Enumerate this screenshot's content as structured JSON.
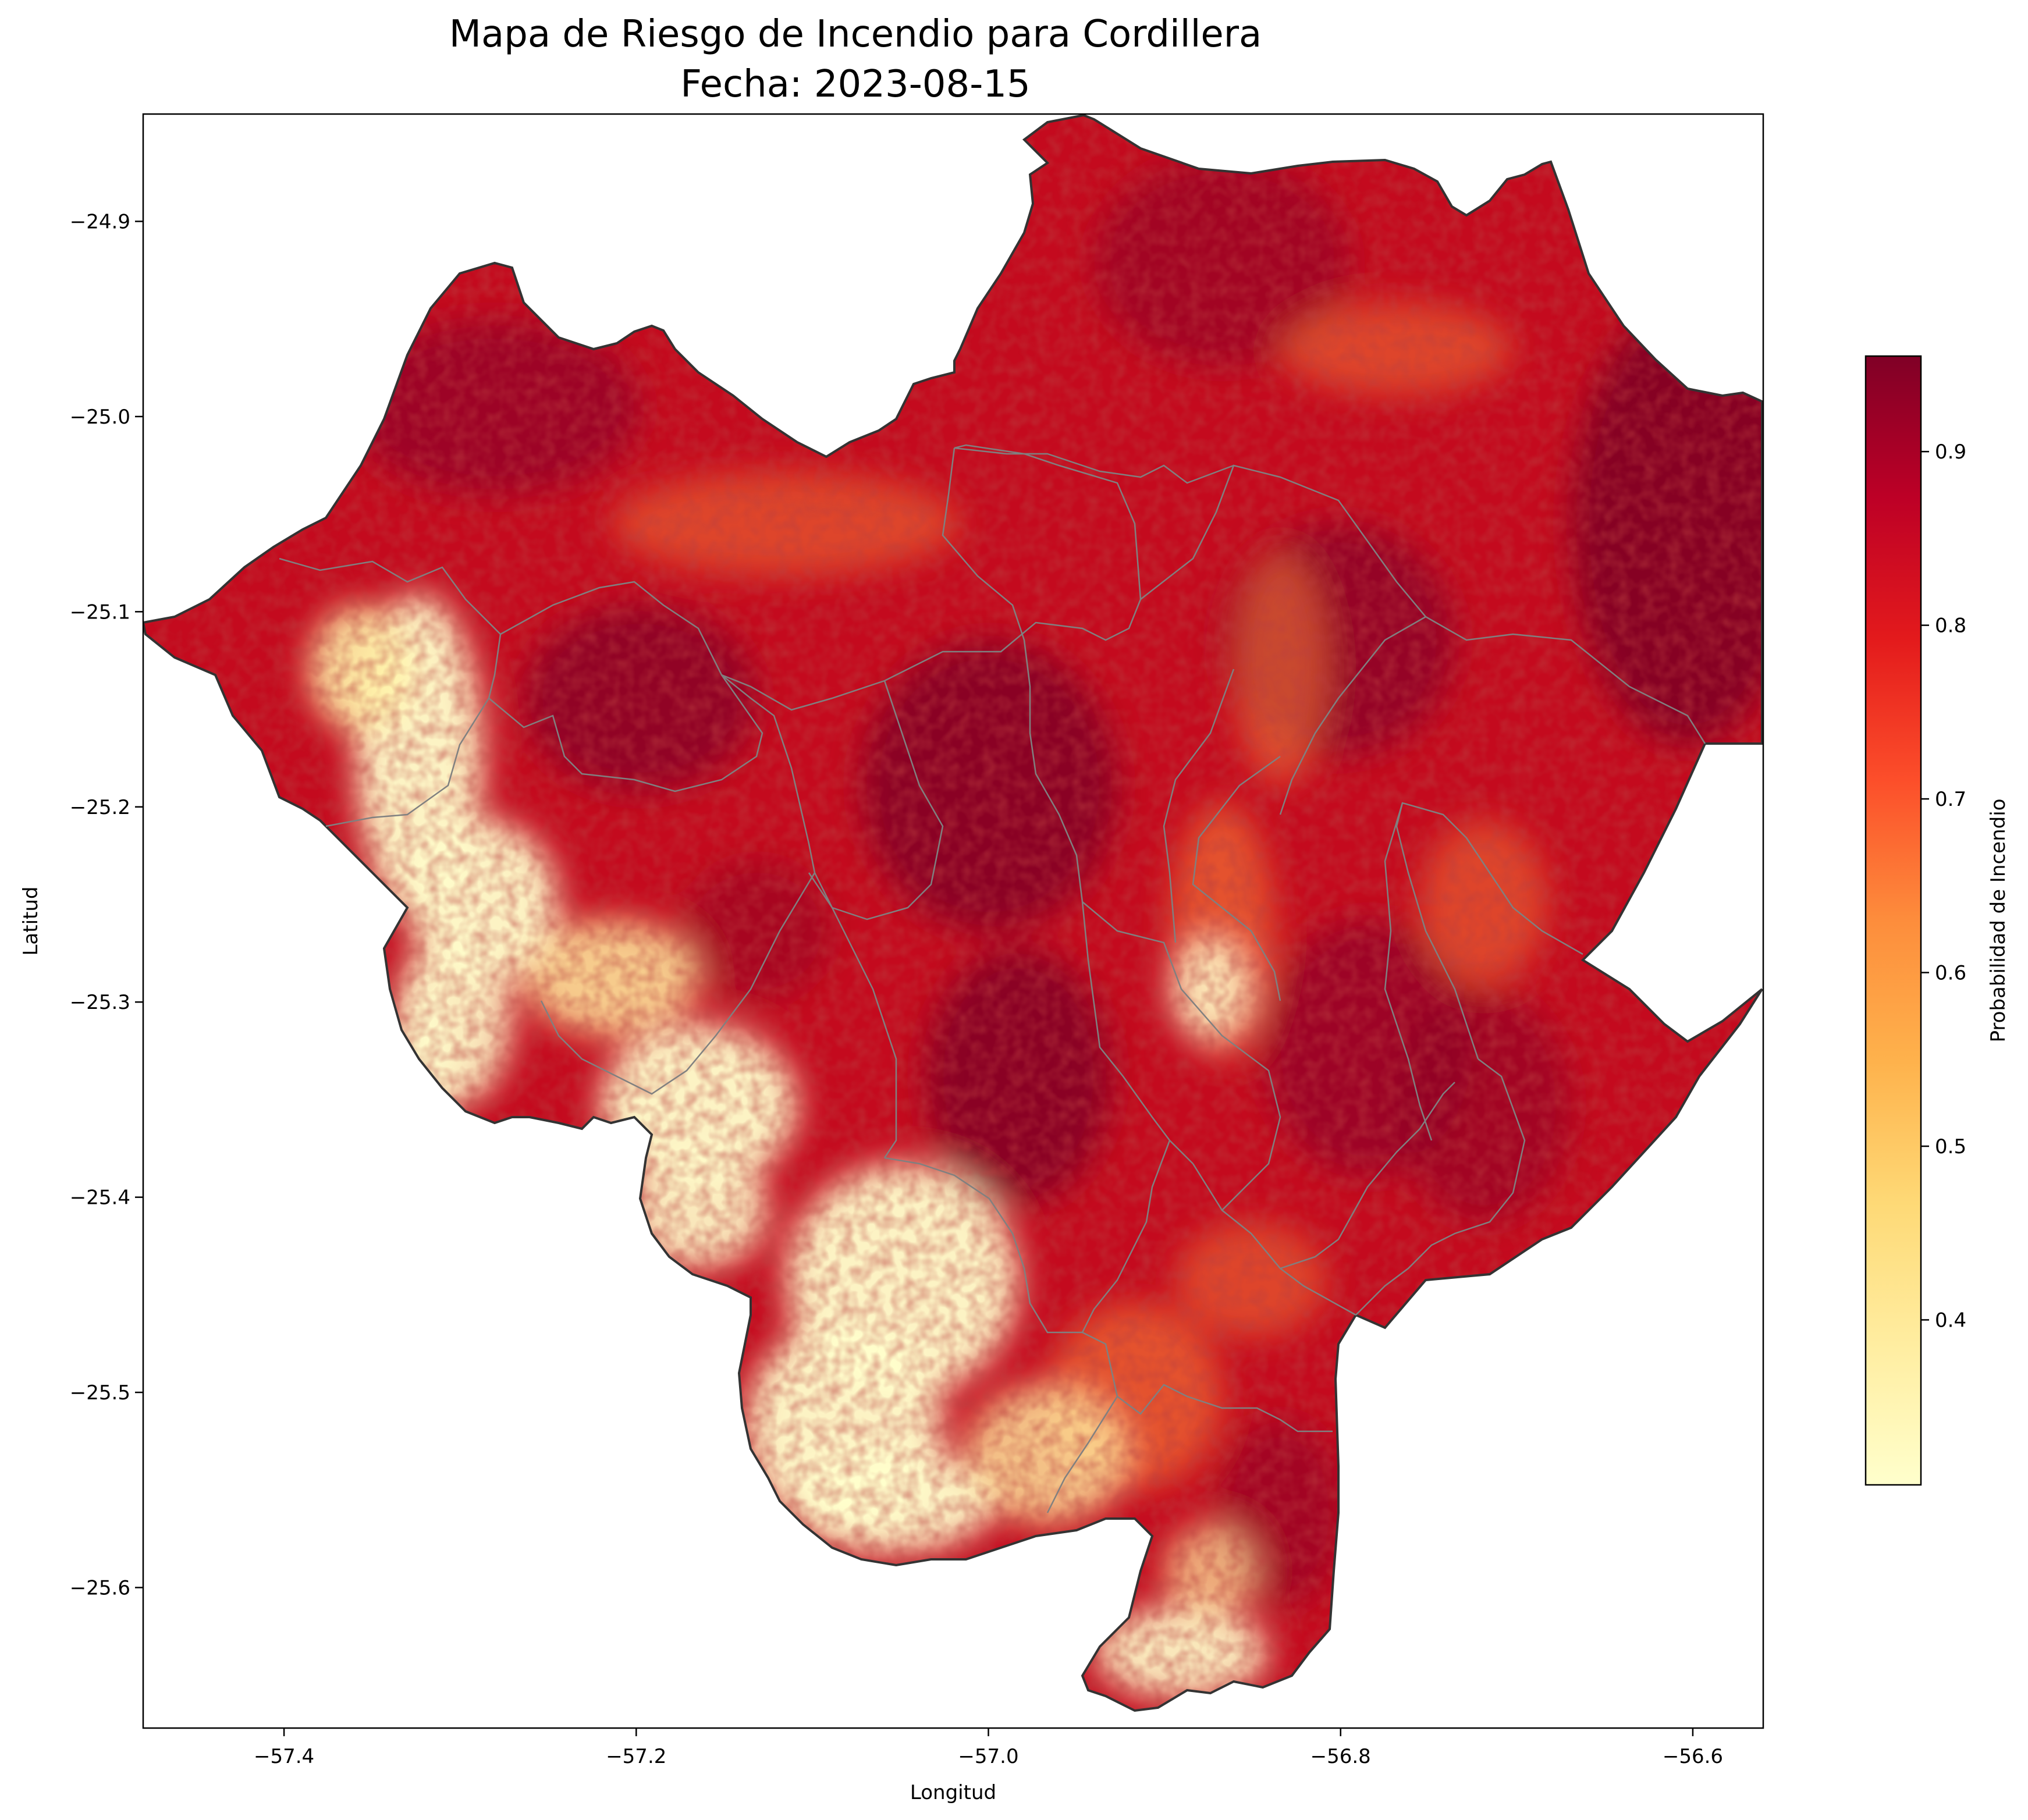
{
  "title_line1": "Mapa de Riesgo de Incendio para Cordillera",
  "title_line2": "Fecha: 2023-08-15",
  "colors": {
    "low": "#ffffcc",
    "mid_low": "#fed976",
    "mid": "#fd8d3c",
    "mid_high": "#e31a1c",
    "high": "#800026",
    "outline": "#333333",
    "district_border": "#808080"
  },
  "chart_data": {
    "type": "heatmap",
    "xlabel": "Longitud",
    "ylabel": "Latitud",
    "xlim": [
      -57.48,
      -56.56
    ],
    "ylim": [
      -25.672,
      -24.845
    ],
    "x_ticks": [
      "−57.4",
      "−57.2",
      "−57.0",
      "−56.8",
      "−56.6"
    ],
    "x_tick_values": [
      -57.4,
      -57.2,
      -57.0,
      -56.8,
      -56.6
    ],
    "y_ticks": [
      "−24.9",
      "−25.0",
      "−25.1",
      "−25.2",
      "−25.3",
      "−25.4",
      "−25.5",
      "−25.6"
    ],
    "y_tick_values": [
      -24.9,
      -25.0,
      -25.1,
      -25.2,
      -25.3,
      -25.4,
      -25.5,
      -25.6
    ],
    "colorbar": {
      "label": "Probabilidad de Incendio",
      "range": [
        0.305,
        0.955
      ],
      "ticks": [
        "0.4",
        "0.5",
        "0.6",
        "0.7",
        "0.8",
        "0.9"
      ],
      "tick_values": [
        0.4,
        0.5,
        0.6,
        0.7,
        0.8,
        0.9
      ],
      "colormap": "YlOrRd"
    },
    "low_risk_zones": [
      {
        "lon": -57.27,
        "lat": -25.2,
        "value": 0.33
      },
      {
        "lon": -57.35,
        "lat": -25.28,
        "value": 0.32
      },
      {
        "lon": -57.15,
        "lat": -25.38,
        "value": 0.35
      },
      {
        "lon": -57.03,
        "lat": -25.48,
        "value": 0.33
      },
      {
        "lon": -57.08,
        "lat": -25.56,
        "value": 0.32
      },
      {
        "lon": -56.88,
        "lat": -25.63,
        "value": 0.38
      }
    ]
  }
}
